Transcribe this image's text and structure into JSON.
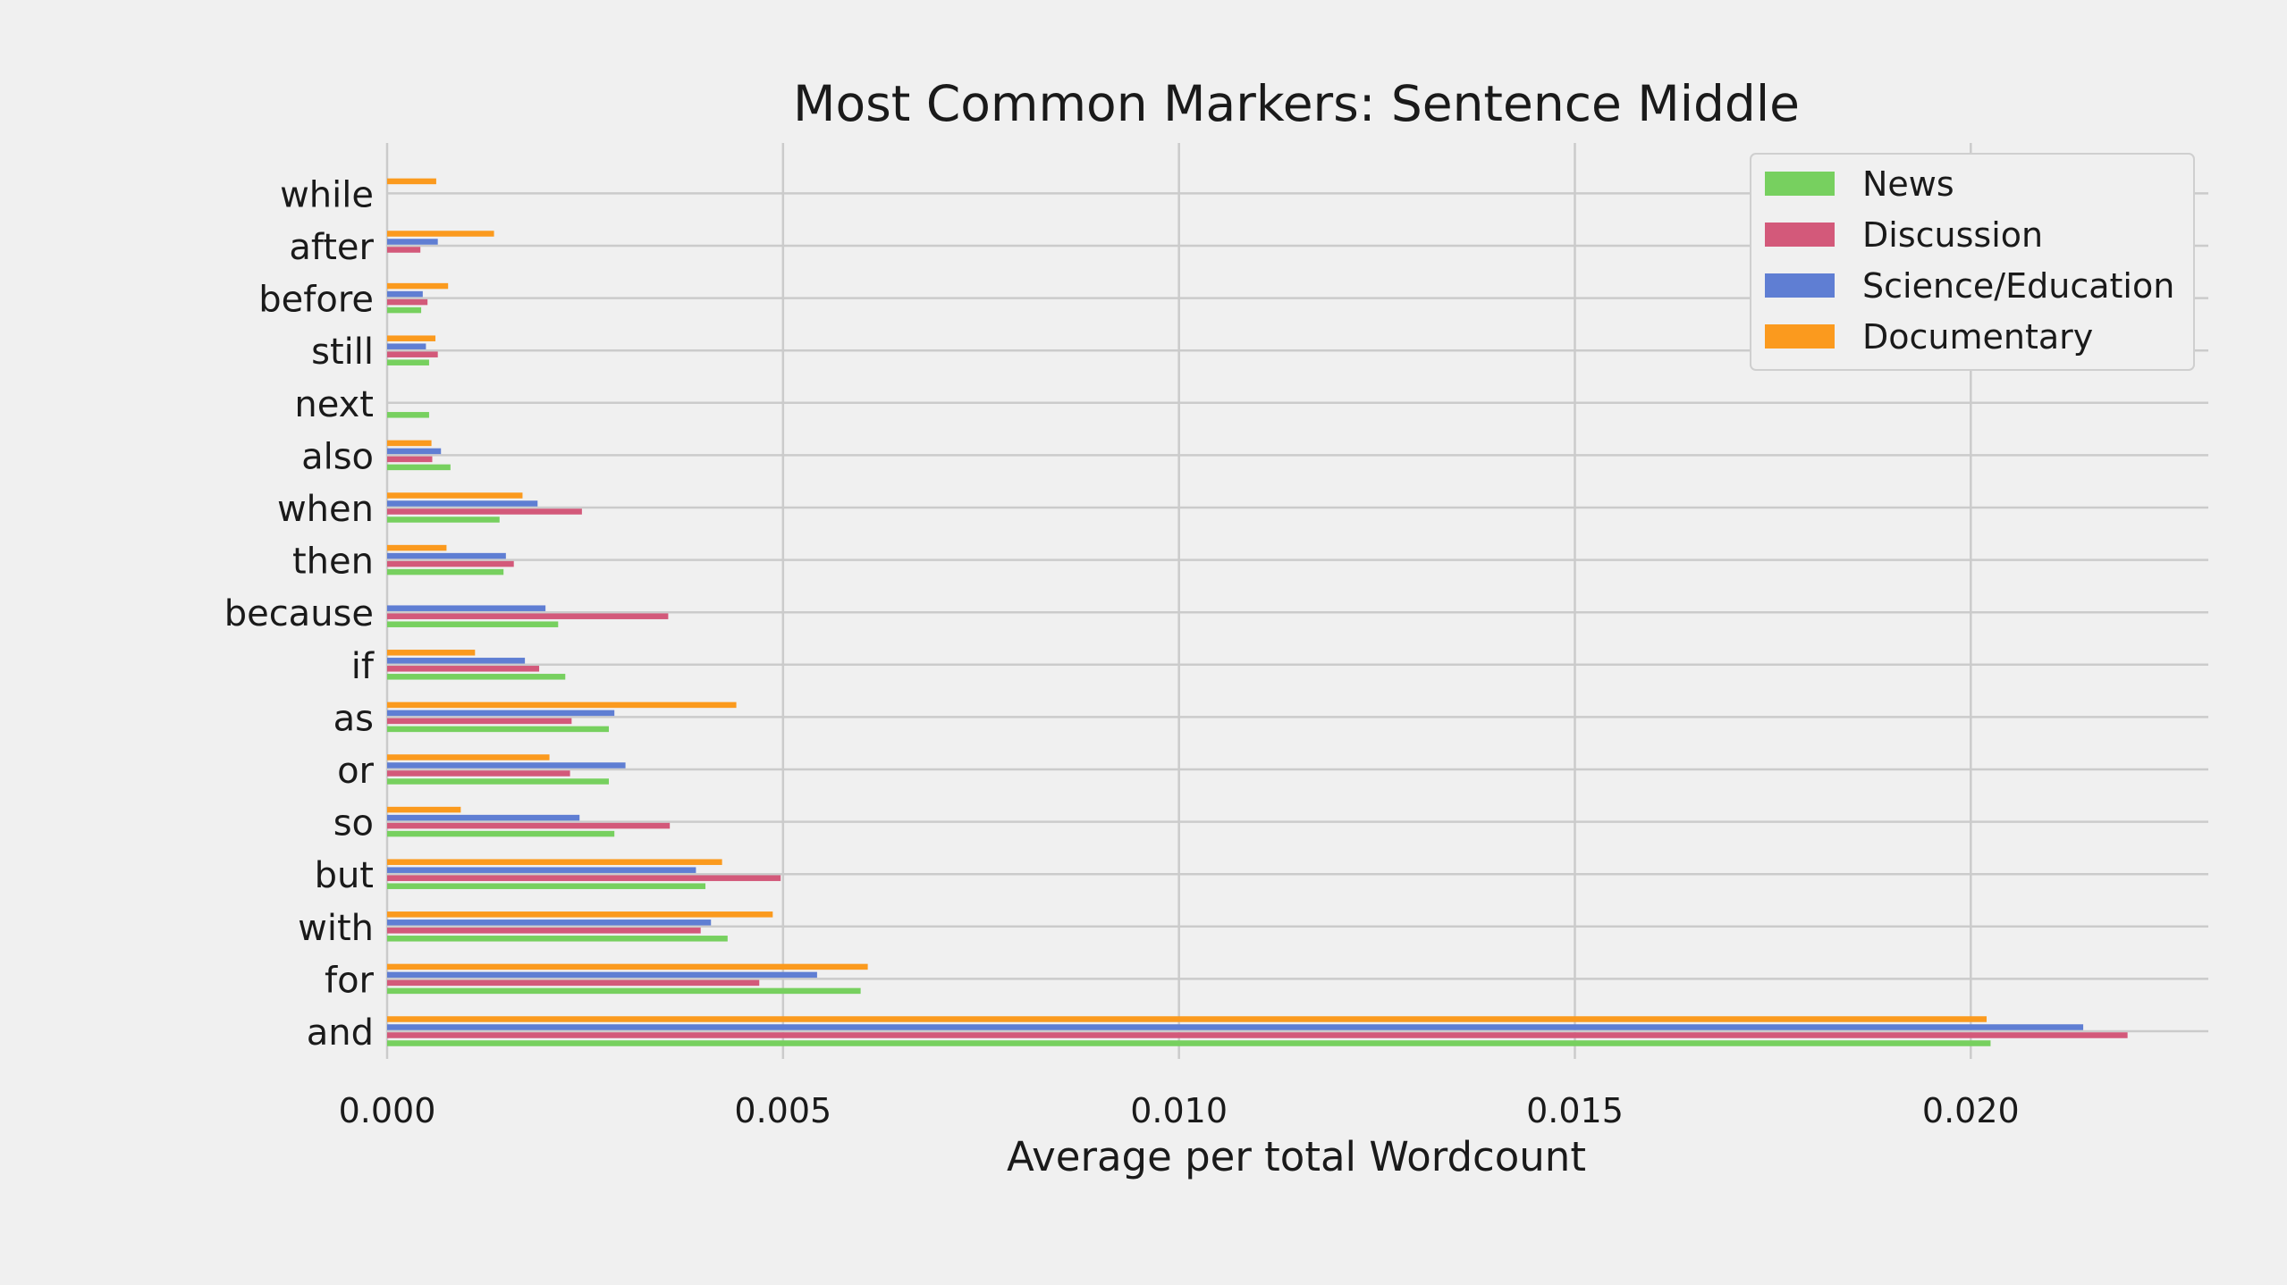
{
  "chart_data": {
    "type": "bar",
    "orientation": "horizontal",
    "title": "Most Common Markers: Sentence Middle",
    "xlabel": "Average per total Wordcount",
    "ylabel": "",
    "xlim": [
      0,
      0.023
    ],
    "xticks": [
      "0.000",
      "0.005",
      "0.010",
      "0.015",
      "0.020"
    ],
    "grid": true,
    "legend_position": "top-right",
    "categories": [
      "and",
      "for",
      "with",
      "but",
      "so",
      "or",
      "as",
      "if",
      "because",
      "then",
      "when",
      "also",
      "next",
      "still",
      "before",
      "after",
      "while"
    ],
    "series": [
      {
        "name": "News",
        "color": "#77d05f",
        "values": [
          0.02025,
          0.00598,
          0.0043,
          0.00402,
          0.00287,
          0.0028,
          0.0028,
          0.00225,
          0.00216,
          0.00147,
          0.00142,
          0.0008,
          0.00053,
          0.00053,
          0.00043,
          0,
          0
        ]
      },
      {
        "name": "Discussion",
        "color": "#d3597a",
        "values": [
          0.02198,
          0.0047,
          0.00396,
          0.00497,
          0.00357,
          0.00231,
          0.00233,
          0.00192,
          0.00355,
          0.0016,
          0.00246,
          0.00057,
          0,
          0.00064,
          0.00051,
          0.00042,
          0
        ]
      },
      {
        "name": "Science/Education",
        "color": "#5f7ed3",
        "values": [
          0.02142,
          0.00543,
          0.00409,
          0.0039,
          0.00243,
          0.00301,
          0.00287,
          0.00174,
          0.002,
          0.0015,
          0.0019,
          0.00068,
          0,
          0.00049,
          0.00045,
          0.00064,
          0
        ]
      },
      {
        "name": "Documentary",
        "color": "#fb9a1e",
        "values": [
          0.0202,
          0.00607,
          0.00487,
          0.00423,
          0.00093,
          0.00205,
          0.00441,
          0.00111,
          0,
          0.00075,
          0.00171,
          0.00056,
          0,
          0.00061,
          0.00077,
          0.00135,
          0.00062
        ]
      }
    ]
  }
}
